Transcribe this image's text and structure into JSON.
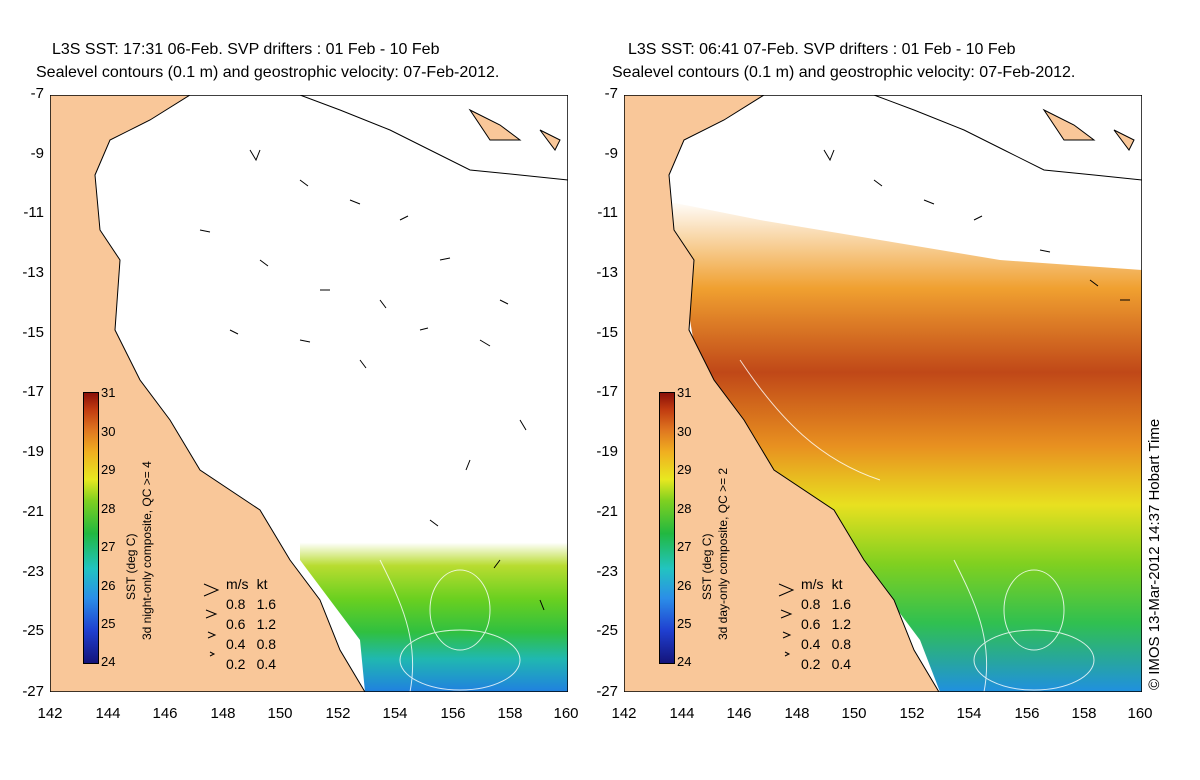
{
  "panels": [
    {
      "title_line1": "L3S SST: 17:31 06-Feb. SVP drifters : 01 Feb - 10 Feb",
      "title_line2": "Sealevel contours (0.1 m) and geostrophic velocity: 07-Feb-2012.",
      "colorbar_label": "SST (deg C)",
      "composite_label": "3d night-only composite, QC >= 4"
    },
    {
      "title_line1": "L3S SST: 06:41 07-Feb. SVP drifters : 01 Feb - 10 Feb",
      "title_line2": "Sealevel contours (0.1 m) and geostrophic velocity: 07-Feb-2012.",
      "colorbar_label": "SST (deg C)",
      "composite_label": "3d day-only composite, QC >= 2"
    }
  ],
  "axes": {
    "lat_ticks": [
      "-7",
      "-9",
      "-11",
      "-13",
      "-15",
      "-17",
      "-19",
      "-21",
      "-23",
      "-25",
      "-27"
    ],
    "lon_ticks": [
      "142",
      "144",
      "146",
      "148",
      "150",
      "152",
      "154",
      "156",
      "158",
      "160"
    ],
    "lat_range": [
      -27,
      -7
    ],
    "lon_range": [
      142,
      160
    ]
  },
  "colorbar": {
    "ticks": [
      "31",
      "30",
      "29",
      "28",
      "27",
      "26",
      "25",
      "24"
    ],
    "range": [
      24,
      31
    ]
  },
  "velocity_legend": {
    "header_ms": "m/s",
    "header_kt": "kt",
    "rows": [
      {
        "ms": "0.8",
        "kt": "1.6"
      },
      {
        "ms": "0.6",
        "kt": "1.2"
      },
      {
        "ms": "0.4",
        "kt": "0.8"
      },
      {
        "ms": "0.2",
        "kt": "0.4"
      }
    ]
  },
  "copyright": "© IMOS 13-Mar-2012 14:37 Hobart Time",
  "colors": {
    "land": "#f9c799",
    "coastline": "#000000",
    "sea_no_data": "#ffffff",
    "contour": "#ffffff"
  }
}
